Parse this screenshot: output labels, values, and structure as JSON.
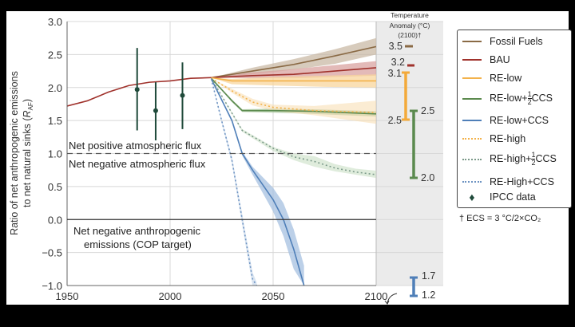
{
  "chart_data": {
    "type": "line",
    "xlabel": "",
    "ylabel": "Ratio of net anthropogenic emissions to net natural sinks (R_AF)",
    "ylabel_line1": "Ratio of net anthropogenic emissions",
    "ylabel_line2": "to net natural sinks (",
    "ylabel_sym": "R",
    "ylabel_sub": "AF",
    "xlim": [
      1950,
      2100
    ],
    "ylim": [
      -1.0,
      3.0
    ],
    "xticks": [
      "1950",
      "2000",
      "2050",
      "2100"
    ],
    "yticks": [
      "3.0",
      "2.5",
      "2.0",
      "1.5",
      "1.0",
      "0.5",
      "0.0",
      "−0.5",
      "−1.0"
    ],
    "grid": true,
    "legend_position": "right",
    "annotations": {
      "pos_flux": "Net positive atmospheric flux",
      "neg_flux": "Net negative atmospheric flux",
      "cop_1": "Net negative anthropogenic",
      "cop_2": "emissions (COP target)",
      "temp_title_1": "Temperature",
      "temp_title_2": "Anomaly (°C)",
      "temp_title_3": "(2100)†",
      "footnote": "† ECS = 3 °C/2×CO₂"
    },
    "series": [
      {
        "name": "Fossil Fuels",
        "color": "#8a6a45",
        "band_color": "#c9b9a5",
        "style": "solid",
        "x": [
          2020,
          2040,
          2060,
          2080,
          2100
        ],
        "y": [
          2.15,
          2.25,
          2.35,
          2.48,
          2.62
        ],
        "low": [
          2.15,
          2.2,
          2.27,
          2.36,
          2.5
        ],
        "high": [
          2.15,
          2.3,
          2.43,
          2.58,
          2.75
        ]
      },
      {
        "name": "BAU",
        "color": "#a0322c",
        "band_color": "#d9a3a0",
        "style": "solid",
        "x": [
          1950,
          1960,
          1970,
          1980,
          1990,
          2000,
          2010,
          2020,
          2040,
          2060,
          2080,
          2100
        ],
        "y": [
          1.72,
          1.8,
          1.93,
          2.03,
          2.08,
          2.1,
          2.14,
          2.15,
          2.18,
          2.2,
          2.25,
          2.3
        ],
        "low": [
          1.72,
          1.8,
          1.93,
          2.03,
          2.08,
          2.1,
          2.14,
          2.15,
          2.14,
          2.14,
          2.16,
          2.18
        ],
        "high": [
          1.72,
          1.8,
          1.93,
          2.03,
          2.08,
          2.1,
          2.14,
          2.15,
          2.23,
          2.28,
          2.34,
          2.4
        ]
      },
      {
        "name": "RE-low",
        "color": "#f3b24a",
        "band_color": "#f8d59c",
        "style": "solid",
        "x": [
          2020,
          2030,
          2050,
          2075,
          2100
        ],
        "y": [
          2.15,
          2.1,
          2.1,
          2.1,
          2.1
        ],
        "low": [
          2.15,
          2.05,
          2.03,
          2.01,
          2.0
        ],
        "high": [
          2.15,
          2.13,
          2.16,
          2.18,
          2.2
        ]
      },
      {
        "name": "RE-low+½CCS",
        "label_main": "RE-low+",
        "label_frac": "1/2",
        "label_tail": "CCS",
        "color": "#5b8a4e",
        "band_color": "#a9c79d",
        "style": "solid",
        "x": [
          2020,
          2030,
          2035,
          2050,
          2070,
          2100
        ],
        "y": [
          2.14,
          1.8,
          1.65,
          1.65,
          1.64,
          1.6
        ],
        "low": [
          2.14,
          1.78,
          1.63,
          1.62,
          1.6,
          1.56
        ],
        "high": [
          2.14,
          1.82,
          1.67,
          1.68,
          1.67,
          1.64
        ]
      },
      {
        "name": "RE-low+CCS",
        "color": "#4f7fb8",
        "band_color": "#a6c0e0",
        "style": "solid",
        "x": [
          2020,
          2030,
          2035,
          2040,
          2050,
          2055,
          2060,
          2065
        ],
        "y": [
          2.13,
          1.5,
          1.0,
          0.75,
          0.3,
          0.0,
          -0.45,
          -1.0
        ],
        "low": [
          2.13,
          1.48,
          0.97,
          0.68,
          0.12,
          -0.25,
          -0.75,
          -1.0
        ],
        "high": [
          2.13,
          1.52,
          1.03,
          0.8,
          0.48,
          0.25,
          -0.15,
          -0.7
        ]
      },
      {
        "name": "RE-high",
        "color": "#f3b24a",
        "band_color": "#f8dcae",
        "style": "dotted",
        "x": [
          2020,
          2030,
          2040,
          2050,
          2070,
          2100
        ],
        "y": [
          2.14,
          1.95,
          1.78,
          1.7,
          1.65,
          1.62
        ],
        "low": [
          2.14,
          1.92,
          1.73,
          1.65,
          1.58,
          1.45
        ],
        "high": [
          2.14,
          1.98,
          1.83,
          1.74,
          1.72,
          1.8
        ]
      },
      {
        "name": "RE-high+½CCS",
        "label_main": "RE-high+",
        "label_frac": "1/2",
        "label_tail": "CCS",
        "color": "#7c9a8a",
        "band_color": "#c5dcc0",
        "style": "dotted",
        "x": [
          2020,
          2035,
          2050,
          2060,
          2070,
          2080,
          2090,
          2100
        ],
        "y": [
          2.14,
          1.35,
          1.08,
          0.95,
          0.88,
          0.78,
          0.72,
          0.68
        ],
        "low": [
          2.14,
          1.33,
          1.04,
          0.9,
          0.8,
          0.73,
          0.68,
          0.63
        ],
        "high": [
          2.14,
          1.37,
          1.1,
          1.0,
          0.96,
          0.84,
          0.77,
          0.74
        ]
      },
      {
        "name": "RE-High+CCS",
        "color": "#6d93c2",
        "band_color": "#b9cde6",
        "style": "dotted",
        "x": [
          2020,
          2025,
          2030,
          2035,
          2040,
          2042
        ],
        "y": [
          2.13,
          1.5,
          0.9,
          0.0,
          -0.9,
          -1.0
        ],
        "low": [
          2.13,
          1.47,
          0.85,
          -0.08,
          -1.0,
          -1.0
        ],
        "high": [
          2.13,
          1.53,
          0.95,
          0.08,
          -0.8,
          -0.95
        ]
      }
    ],
    "ipcc": {
      "name": "IPCC data",
      "color": "#1f4a3a",
      "points": [
        {
          "x": 1984,
          "y": 1.97,
          "low": 1.35,
          "high": 2.6
        },
        {
          "x": 1993,
          "y": 1.65,
          "low": 1.2,
          "high": 2.08
        },
        {
          "x": 2006,
          "y": 1.88,
          "low": 1.37,
          "high": 2.38
        }
      ]
    },
    "temperature_2100": [
      {
        "series": "Fossil Fuels",
        "value": "3.5",
        "color": "#8a6a45"
      },
      {
        "series": "BAU",
        "value": "3.2",
        "color": "#a0322c"
      },
      {
        "series": "RE-low",
        "range": [
          "3.1",
          "2.5"
        ],
        "color": "#f3a93a"
      },
      {
        "series": "RE-low+½CCS",
        "range": [
          "2.5",
          "2.0"
        ],
        "color": "#5b8a4e"
      },
      {
        "series": "RE-low+CCS",
        "range": [
          "1.7",
          "1.2"
        ],
        "color": "#4f7fb8"
      }
    ]
  }
}
